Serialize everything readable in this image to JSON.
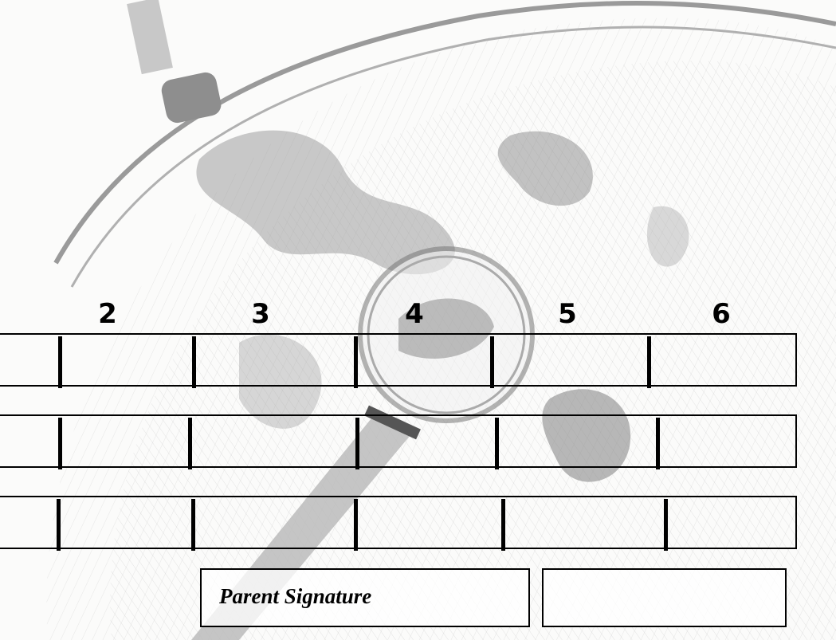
{
  "columns": [
    "2",
    "3",
    "4",
    "5",
    "6"
  ],
  "signature_label": "Parent Signature",
  "illustration": "globe-with-magnifying-glass-sketch"
}
